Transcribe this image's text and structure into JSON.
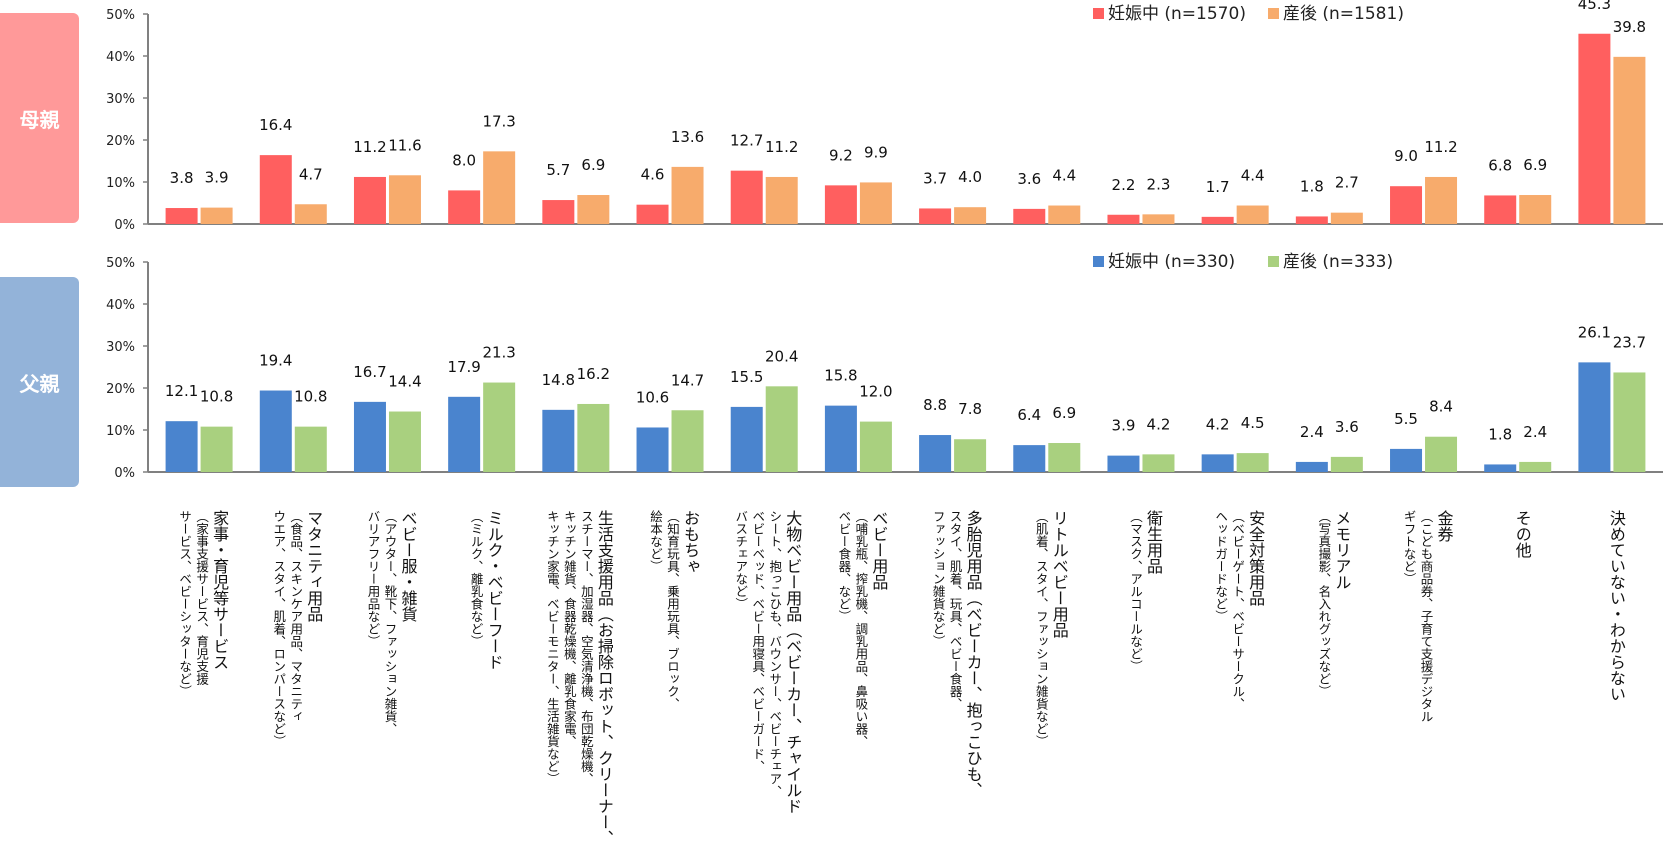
{
  "panels": {
    "mother": {
      "label": "母親"
    },
    "father": {
      "label": "父親"
    }
  },
  "chart_data": [
    {
      "type": "bar",
      "panel": "母親",
      "categories": [
        "家事・育児等サービス",
        "マタニティ用品",
        "ベビー服・雑貨",
        "ミルク・ベビーフード",
        "生活支援用品",
        "おもちゃ",
        "大物ベビー用品",
        "ベビー用品",
        "多胎児用品",
        "リトルベビー用品",
        "衛生用品",
        "安全対策用品",
        "メモリアル",
        "金券",
        "その他",
        "決めていない・わからない"
      ],
      "series": [
        {
          "name": "妊娠中 (n=1570)",
          "color": "#ff5f5f",
          "values": [
            3.8,
            16.4,
            11.2,
            8.0,
            5.7,
            4.6,
            12.7,
            9.2,
            3.7,
            3.6,
            2.2,
            1.7,
            1.8,
            9.0,
            6.8,
            45.3
          ]
        },
        {
          "name": "産後 (n=1581)",
          "color": "#f7ab6c",
          "values": [
            3.9,
            4.7,
            11.6,
            17.3,
            6.9,
            13.6,
            11.2,
            9.9,
            4.0,
            4.4,
            2.3,
            4.4,
            2.7,
            11.2,
            6.9,
            39.8
          ]
        }
      ],
      "yticks": [
        "0%",
        "10%",
        "20%",
        "30%",
        "40%",
        "50%"
      ],
      "ylim": [
        0,
        50
      ],
      "legend": "top-right",
      "grid": false,
      "title": "",
      "xlabel": "",
      "ylabel": ""
    },
    {
      "type": "bar",
      "panel": "父親",
      "categories": [
        "家事・育児等サービス",
        "マタニティ用品",
        "ベビー服・雑貨",
        "ミルク・ベビーフード",
        "生活支援用品",
        "おもちゃ",
        "大物ベビー用品",
        "ベビー用品",
        "多胎児用品",
        "リトルベビー用品",
        "衛生用品",
        "安全対策用品",
        "メモリアル",
        "金券",
        "その他",
        "決めていない・わからない"
      ],
      "series": [
        {
          "name": "妊娠中 (n=330)",
          "color": "#4a84ce",
          "values": [
            12.1,
            19.4,
            16.7,
            17.9,
            14.8,
            10.6,
            15.5,
            15.8,
            8.8,
            6.4,
            3.9,
            4.2,
            2.4,
            5.5,
            1.8,
            26.1
          ]
        },
        {
          "name": "産後 (n=333)",
          "color": "#a9d07f",
          "values": [
            10.8,
            10.8,
            14.4,
            21.3,
            16.2,
            14.7,
            20.4,
            12.0,
            7.8,
            6.9,
            4.2,
            4.5,
            3.6,
            8.4,
            2.4,
            23.7
          ]
        }
      ],
      "yticks": [
        "0%",
        "10%",
        "20%",
        "30%",
        "40%",
        "50%"
      ],
      "ylim": [
        0,
        50
      ],
      "legend": "top-right",
      "grid": false,
      "title": "",
      "xlabel": "",
      "ylabel": ""
    }
  ],
  "category_labels": [
    {
      "main": "家事・育児等サービス",
      "sub": [
        "（家事支援サービス、育児支援",
        "サービス、ベビーシッターなど）"
      ]
    },
    {
      "main": "マタニティ用品",
      "sub": [
        "（食品、スキンケア用品、マタニティ",
        "ウエア、スタイ、肌着、ロンパースなど）"
      ]
    },
    {
      "main": "ベビー服・雑貨",
      "sub": [
        "（アウター、靴下、ファッション雑貨、",
        "バリアフリー用品など）"
      ]
    },
    {
      "main": "ミルク・ベビーフード",
      "sub": [
        "（ミルク、離乳食など）"
      ]
    },
    {
      "main": "生活支援用品（お掃除ロボット、クリーナー、",
      "sub": [
        "スチーマー、加湿器、空気清浄機、布団乾燥機、",
        "キッチン雑貨、食器乾燥機、離乳食家電、",
        "キッチン家電、ベビーモニター、生活雑貨など）"
      ]
    },
    {
      "main": "おもちゃ",
      "sub": [
        "（知育玩具、乗用玩具、ブロック、",
        "絵本など）"
      ]
    },
    {
      "main": "大物ベビー用品（ベビーカー、チャイルド",
      "sub": [
        "シート、抱っこひも、バウンサー、ベビーチェア、",
        "ベビーベッド、ベビー用寝具、ベビーガード、",
        "バスチェアなど）"
      ]
    },
    {
      "main": "ベビー用品",
      "sub": [
        "（哺乳瓶、搾乳機、調乳用品、鼻吸い器、",
        "ベビー食器、など）"
      ]
    },
    {
      "main": "多胎児用品（ベビーカー、抱っこひも、",
      "sub": [
        "スタイ、肌着、玩具、ベビー食器、",
        "ファッション雑貨など）"
      ]
    },
    {
      "main": "リトルベビー用品",
      "sub": [
        "（肌着、スタイ、ファッション雑貨など）"
      ]
    },
    {
      "main": "衛生用品",
      "sub": [
        "（マスク、アルコールなど）"
      ]
    },
    {
      "main": "安全対策用品",
      "sub": [
        "（ベビーゲート、ベビーサークル、",
        "ヘッドガードなど）"
      ]
    },
    {
      "main": "メモリアル",
      "sub": [
        "（写真撮影、名入れグッズなど）"
      ]
    },
    {
      "main": "金券",
      "sub": [
        "（こども商品券、子育て支援デジタル",
        "ギフトなど）"
      ]
    },
    {
      "main": "その他",
      "sub": []
    },
    {
      "main": "決めていない・わからない",
      "sub": []
    }
  ]
}
